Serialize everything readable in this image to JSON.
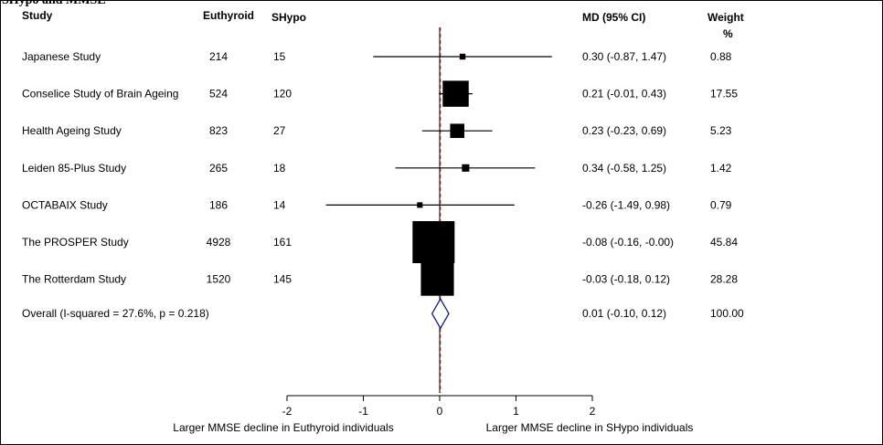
{
  "cutoff_title": "SHypo and MMSE",
  "chart_data": {
    "type": "forest",
    "headers": {
      "study": "Study",
      "euthyroid": "Euthyroid",
      "shypo": "SHypo",
      "md": "MD (95% CI)",
      "weight": "Weight",
      "weight_unit": "%"
    },
    "studies": [
      {
        "name": "Japanese Study",
        "euthyroid": "214",
        "shypo": "15",
        "md": 0.3,
        "lo": -0.87,
        "hi": 1.47,
        "ci_text": "0.30 (-0.87, 1.47)",
        "weight": 0.88,
        "weight_text": "0.88"
      },
      {
        "name": "Conselice Study of Brain Ageing",
        "euthyroid": "524",
        "shypo": "120",
        "md": 0.21,
        "lo": -0.01,
        "hi": 0.43,
        "ci_text": "0.21 (-0.01, 0.43)",
        "weight": 17.55,
        "weight_text": "17.55"
      },
      {
        "name": "Health Ageing Study",
        "euthyroid": "823",
        "shypo": "27",
        "md": 0.23,
        "lo": -0.23,
        "hi": 0.69,
        "ci_text": "0.23 (-0.23, 0.69)",
        "weight": 5.23,
        "weight_text": "5.23"
      },
      {
        "name": "Leiden 85-Plus Study",
        "euthyroid": "265",
        "shypo": "18",
        "md": 0.34,
        "lo": -0.58,
        "hi": 1.25,
        "ci_text": "0.34 (-0.58, 1.25)",
        "weight": 1.42,
        "weight_text": "1.42"
      },
      {
        "name": "OCTABAIX Study",
        "euthyroid": "186",
        "shypo": "14",
        "md": -0.26,
        "lo": -1.49,
        "hi": 0.98,
        "ci_text": "-0.26 (-1.49, 0.98)",
        "weight": 0.79,
        "weight_text": "0.79"
      },
      {
        "name": "The PROSPER Study",
        "euthyroid": "4928",
        "shypo": "161",
        "md": -0.08,
        "lo": -0.16,
        "hi": -0.0,
        "ci_text": "-0.08 (-0.16, -0.00)",
        "weight": 45.84,
        "weight_text": "45.84"
      },
      {
        "name": "The Rotterdam Study",
        "euthyroid": "1520",
        "shypo": "145",
        "md": -0.03,
        "lo": -0.18,
        "hi": 0.12,
        "ci_text": "-0.03 (-0.18, 0.12)",
        "weight": 28.28,
        "weight_text": "28.28"
      }
    ],
    "overall": {
      "label": "Overall  (I-squared = 27.6%, p = 0.218)",
      "md": 0.01,
      "lo": -0.1,
      "hi": 0.12,
      "ci_text": "0.01 (-0.10, 0.12)",
      "weight_text": "100.00"
    },
    "x_ticks": [
      -2,
      -1,
      0,
      1,
      2
    ],
    "x_range": [
      -2,
      2
    ],
    "xlabel_left": "Larger MMSE decline in Euthyroid individuals",
    "xlabel_right": "Larger MMSE decline in SHypo individuals",
    "colors": {
      "null_line": "#000000",
      "overall_line": "#b03030",
      "diamond": "#1a1a7a",
      "marks": "#000000"
    }
  }
}
